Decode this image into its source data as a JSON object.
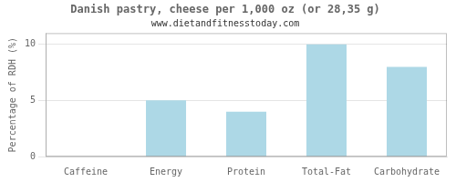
{
  "chart_data": {
    "type": "bar",
    "title": "Danish pastry, cheese per 1,000 oz (or 28,35 g)",
    "subtitle": "www.dietandfitnesstoday.com",
    "categories": [
      "Caffeine",
      "Energy",
      "Protein",
      "Total-Fat",
      "Carbohydrate"
    ],
    "values": [
      0,
      5,
      4,
      10,
      8
    ],
    "color": "#add8e6",
    "ylabel": "Percentage of RDH (%)",
    "ylim": [
      0,
      11
    ],
    "yticks": [
      0,
      5,
      10
    ],
    "grid": true
  }
}
